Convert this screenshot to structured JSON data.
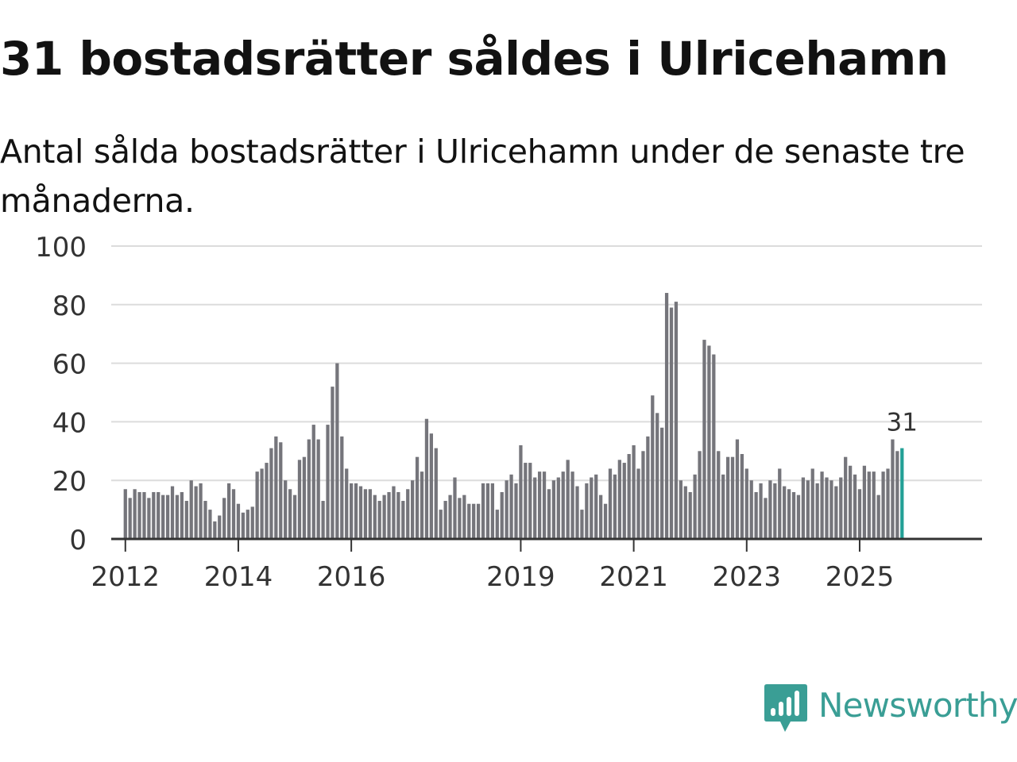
{
  "title": "31 bostadsrätter såldes i Ulricehamn",
  "subtitle": "Antal sålda bostadsrätter i Ulricehamn under de senaste tre månaderna.",
  "brand": {
    "name": "Newsworthy",
    "icon": "newsworthy-logo-icon",
    "color": "#3a9e95"
  },
  "chart_data": {
    "type": "bar",
    "title": "31 bostadsrätter såldes i Ulricehamn",
    "subtitle": "Antal sålda bostadsrätter i Ulricehamn under de senaste tre månaderna.",
    "xlabel": "",
    "ylabel": "",
    "ylim": [
      0,
      100
    ],
    "yticks": [
      "0",
      "20",
      "40",
      "60",
      "80",
      "100"
    ],
    "grid": true,
    "x_start": "2012-01",
    "x_range_months": [
      -3,
      182
    ],
    "xticks": [
      {
        "label": "2012",
        "month_index": 0
      },
      {
        "label": "2014",
        "month_index": 24
      },
      {
        "label": "2016",
        "month_index": 48
      },
      {
        "label": "2019",
        "month_index": 84
      },
      {
        "label": "2021",
        "month_index": 108
      },
      {
        "label": "2023",
        "month_index": 132
      },
      {
        "label": "2025",
        "month_index": 156
      }
    ],
    "bar_color": "#75757b",
    "highlight_color": "#23a096",
    "highlight_label": "31",
    "values": [
      17,
      14,
      17,
      16,
      16,
      14,
      16,
      16,
      15,
      15,
      18,
      15,
      16,
      13,
      20,
      18,
      19,
      13,
      10,
      6,
      8,
      14,
      19,
      17,
      12,
      9,
      10,
      11,
      23,
      24,
      26,
      31,
      35,
      33,
      20,
      17,
      15,
      27,
      28,
      34,
      39,
      34,
      13,
      39,
      52,
      60,
      35,
      24,
      19,
      19,
      18,
      17,
      17,
      15,
      13,
      15,
      16,
      18,
      16,
      13,
      17,
      20,
      28,
      23,
      41,
      36,
      31,
      10,
      13,
      15,
      21,
      14,
      15,
      12,
      12,
      12,
      19,
      19,
      19,
      10,
      16,
      20,
      22,
      19,
      32,
      26,
      26,
      21,
      23,
      23,
      17,
      20,
      21,
      23,
      27,
      23,
      18,
      10,
      19,
      21,
      22,
      15,
      12,
      24,
      22,
      27,
      26,
      29,
      32,
      24,
      30,
      35,
      49,
      43,
      38,
      84,
      79,
      81,
      20,
      18,
      16,
      22,
      30,
      68,
      66,
      63,
      30,
      22,
      28,
      28,
      34,
      29,
      24,
      20,
      16,
      19,
      14,
      20,
      19,
      24,
      18,
      17,
      16,
      15,
      21,
      20,
      24,
      19,
      23,
      21,
      20,
      18,
      21,
      28,
      25,
      22,
      17,
      25,
      23,
      23,
      15,
      23,
      24,
      34,
      30,
      31
    ]
  }
}
